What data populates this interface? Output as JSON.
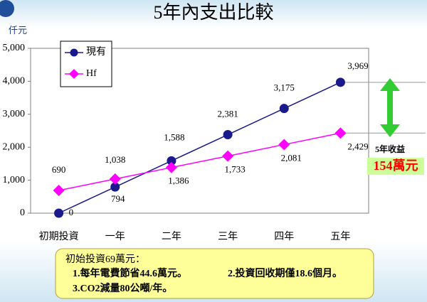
{
  "chart_data": {
    "type": "line",
    "title": "5年內支出比較",
    "y_label": "仟元",
    "categories": [
      "初期投資",
      "一年",
      "二年",
      "三年",
      "四年",
      "五年"
    ],
    "series": [
      {
        "name": "現有",
        "color": "#1a1a8c",
        "marker": "circle",
        "values": [
          0,
          794,
          1588,
          2381,
          3175,
          3969
        ],
        "value_labels": [
          "0",
          "794",
          "1,588",
          "2,381",
          "3,175",
          "3,969"
        ]
      },
      {
        "name": "Hf",
        "color": "#ff00ff",
        "marker": "diamond",
        "values": [
          690,
          1038,
          1386,
          1733,
          2081,
          2429
        ],
        "value_labels": [
          "690",
          "1,038",
          "1,386",
          "1,733",
          "2,081",
          "2,429"
        ]
      }
    ],
    "ylim": [
      0,
      5000
    ],
    "yticks": [
      0,
      {
        "value": 1000,
        "label": "1,000"
      },
      {
        "value": 2000,
        "label": "2,000"
      },
      {
        "value": 3000,
        "label": "3,000"
      },
      {
        "value": 4000,
        "label": "4,000"
      },
      {
        "value": 5000,
        "label": "5,000"
      }
    ],
    "legend": "upper left",
    "annotation": {
      "label": "5年收益",
      "value": "154萬元"
    },
    "note": {
      "heading": "初始投資69萬元：",
      "lines": [
        "1.每年電費節省44.6萬元。",
        "2.投資回收期僅18.6個月。",
        "3.CO2減量80公噸/年。"
      ]
    }
  }
}
